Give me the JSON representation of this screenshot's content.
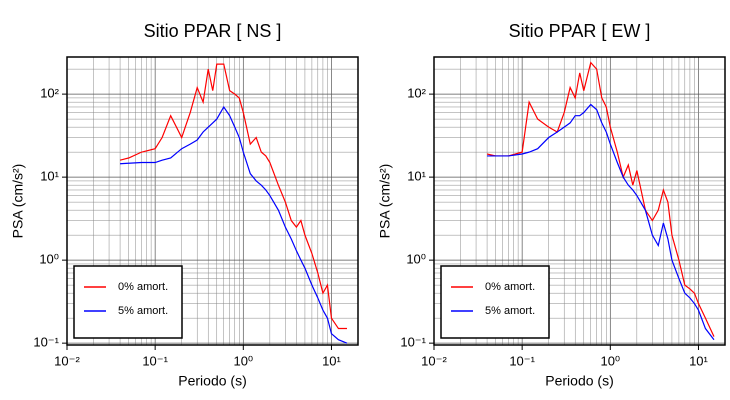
{
  "chart_data": [
    {
      "type": "line",
      "title": "Sitio PPAR [ NS ]",
      "x_label": "Periodo (s)",
      "y_label": "PSA (cm/s²)",
      "xscale": "log",
      "yscale": "log",
      "grid": true,
      "legend": "lower left",
      "xlim": [
        0.01,
        20
      ],
      "ylim": [
        0.095,
        280
      ],
      "xticks": [
        {
          "value": 0.01,
          "label": "10⁻²"
        },
        {
          "value": 0.1,
          "label": "10⁻¹"
        },
        {
          "value": 1,
          "label": "10⁰"
        },
        {
          "value": 10,
          "label": "10¹"
        }
      ],
      "yticks": [
        {
          "value": 0.1,
          "label": "10⁻¹"
        },
        {
          "value": 1,
          "label": "10⁰"
        },
        {
          "value": 10,
          "label": "10¹"
        },
        {
          "value": 100,
          "label": "10²"
        }
      ],
      "x": [
        0.04,
        0.05,
        0.07,
        0.1,
        0.12,
        0.15,
        0.2,
        0.25,
        0.3,
        0.35,
        0.4,
        0.45,
        0.5,
        0.6,
        0.7,
        0.8,
        0.9,
        1,
        1.2,
        1.4,
        1.6,
        1.8,
        2,
        2.5,
        3,
        3.5,
        4,
        4.5,
        5,
        6,
        7,
        8,
        9,
        10,
        12,
        15
      ],
      "series": [
        {
          "name": "0% amort.",
          "color": "#ff0000",
          "values": [
            16,
            17,
            20,
            22,
            30,
            55,
            30,
            60,
            120,
            80,
            200,
            110,
            230,
            230,
            110,
            100,
            90,
            60,
            25,
            30,
            20,
            18,
            15,
            8,
            5,
            3,
            2.5,
            3,
            2,
            1.2,
            0.7,
            0.4,
            0.5,
            0.2,
            0.15,
            0.15
          ]
        },
        {
          "name": "5% amort.",
          "color": "#0000ff",
          "values": [
            14.5,
            14.7,
            15,
            15,
            16,
            17,
            22,
            25,
            28,
            35,
            40,
            45,
            50,
            70,
            55,
            40,
            30,
            20,
            11,
            9,
            8,
            7,
            6,
            4,
            2.5,
            1.8,
            1.3,
            1,
            0.8,
            0.5,
            0.35,
            0.25,
            0.2,
            0.13,
            0.11,
            0.1
          ]
        }
      ]
    },
    {
      "type": "line",
      "title": "Sitio PPAR [ EW ]",
      "x_label": "Periodo (s)",
      "y_label": "PSA (cm/s²)",
      "xscale": "log",
      "yscale": "log",
      "grid": true,
      "legend": "lower left",
      "xlim": [
        0.01,
        20
      ],
      "ylim": [
        0.095,
        280
      ],
      "xticks": [
        {
          "value": 0.01,
          "label": "10⁻²"
        },
        {
          "value": 0.1,
          "label": "10⁻¹"
        },
        {
          "value": 1,
          "label": "10⁰"
        },
        {
          "value": 10,
          "label": "10¹"
        }
      ],
      "yticks": [
        {
          "value": 0.1,
          "label": "10⁻¹"
        },
        {
          "value": 1,
          "label": "10⁰"
        },
        {
          "value": 10,
          "label": "10¹"
        },
        {
          "value": 100,
          "label": "10²"
        }
      ],
      "x": [
        0.04,
        0.05,
        0.07,
        0.1,
        0.12,
        0.15,
        0.2,
        0.25,
        0.3,
        0.35,
        0.4,
        0.45,
        0.5,
        0.6,
        0.7,
        0.8,
        0.9,
        1,
        1.2,
        1.4,
        1.6,
        1.8,
        2,
        2.5,
        3,
        3.5,
        4,
        4.5,
        5,
        6,
        7,
        8,
        9,
        10,
        12,
        15
      ],
      "series": [
        {
          "name": "0% amort.",
          "color": "#ff0000",
          "values": [
            19,
            18,
            18,
            20,
            80,
            50,
            40,
            35,
            60,
            120,
            90,
            180,
            110,
            240,
            200,
            90,
            70,
            40,
            20,
            10,
            14,
            8,
            12,
            4,
            3,
            4,
            7,
            5,
            2,
            1,
            0.5,
            0.45,
            0.4,
            0.3,
            0.2,
            0.12
          ]
        },
        {
          "name": "5% amort.",
          "color": "#0000ff",
          "values": [
            18,
            18,
            18,
            19,
            20,
            22,
            30,
            35,
            40,
            45,
            55,
            55,
            60,
            75,
            65,
            45,
            35,
            25,
            15,
            10,
            8,
            7,
            6,
            4,
            2,
            1.5,
            2.8,
            1.8,
            1,
            0.6,
            0.4,
            0.35,
            0.3,
            0.25,
            0.15,
            0.11
          ]
        }
      ]
    }
  ]
}
